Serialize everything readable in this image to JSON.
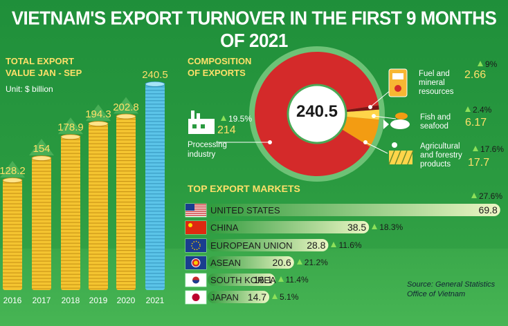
{
  "title": "VIETNAM'S EXPORT TURNOVER IN THE FIRST 9 MONTHS OF 2021",
  "left_heading": [
    "TOTAL EXPORT",
    "VALUE JAN - SEP"
  ],
  "unit": "Unit: $ billion",
  "composition_heading": [
    "COMPOSITION",
    "OF EXPORTS"
  ],
  "markets_heading": "TOP EXPORT MARKETS",
  "source": [
    "Source: General Statistics",
    "Office of Vietnam"
  ],
  "colors": {
    "gold": "#f4c430",
    "blue": "#5bc4e8",
    "red": "#d42a2a",
    "orange": "#f39c12",
    "yellow": "#ffd54a",
    "green_bg": "#2a9a40"
  },
  "chart_data": [
    {
      "type": "bar",
      "title": "",
      "categories": [
        "2016",
        "2017",
        "2018",
        "2019",
        "2020",
        "2021"
      ],
      "values": [
        128.2,
        154,
        178.9,
        194.3,
        202.8,
        240.5
      ],
      "value_labels": [
        "128.2",
        "154",
        "178.9",
        "194.3",
        "202.8",
        "240.5"
      ],
      "ylim": [
        0,
        250
      ]
    },
    {
      "type": "pie",
      "center_label": "240.5",
      "slices": [
        {
          "name": "Processing industry",
          "value": 214,
          "value_label": "214",
          "change": "19.5%",
          "name_lines": [
            "Processing",
            "industry"
          ],
          "icon": "factory-icon"
        },
        {
          "name": "Agricultural and forestry products",
          "value": 17.7,
          "value_label": "17.7",
          "change": "17.6%",
          "name_lines": [
            "Agricultural",
            "and forestry",
            "products"
          ],
          "icon": "field-icon"
        },
        {
          "name": "Fish and seafood",
          "value": 6.17,
          "value_label": "6.17",
          "change": "2.4%",
          "name_lines": [
            "Fish and",
            "seafood"
          ],
          "icon": "fish-icon"
        },
        {
          "name": "Fuel and mineral resources",
          "value": 2.66,
          "value_label": "2.66",
          "change": "9%",
          "name_lines": [
            "Fuel and",
            "mineral",
            "resources"
          ],
          "icon": "fuel-pump-icon"
        }
      ]
    },
    {
      "type": "bar",
      "orientation": "horizontal",
      "title": "TOP EXPORT MARKETS",
      "categories": [
        "UNITED STATES",
        "CHINA",
        "EUROPEAN UNION",
        "ASEAN",
        "SOUTH KOREA",
        "JAPAN"
      ],
      "values": [
        69.8,
        38.5,
        28.8,
        20.6,
        16.1,
        14.7
      ],
      "value_labels": [
        "69.8",
        "38.5",
        "28.8",
        "20.6",
        "16.1",
        "14.7"
      ],
      "changes": [
        "27.6%",
        "18.3%",
        "11.6%",
        "21.2%",
        "11.4%",
        "5.1%"
      ],
      "flags": [
        "us-flag-icon",
        "china-flag-icon",
        "eu-flag-icon",
        "asean-flag-icon",
        "south-korea-flag-icon",
        "japan-flag-icon"
      ],
      "xlim": [
        0,
        70
      ]
    }
  ]
}
